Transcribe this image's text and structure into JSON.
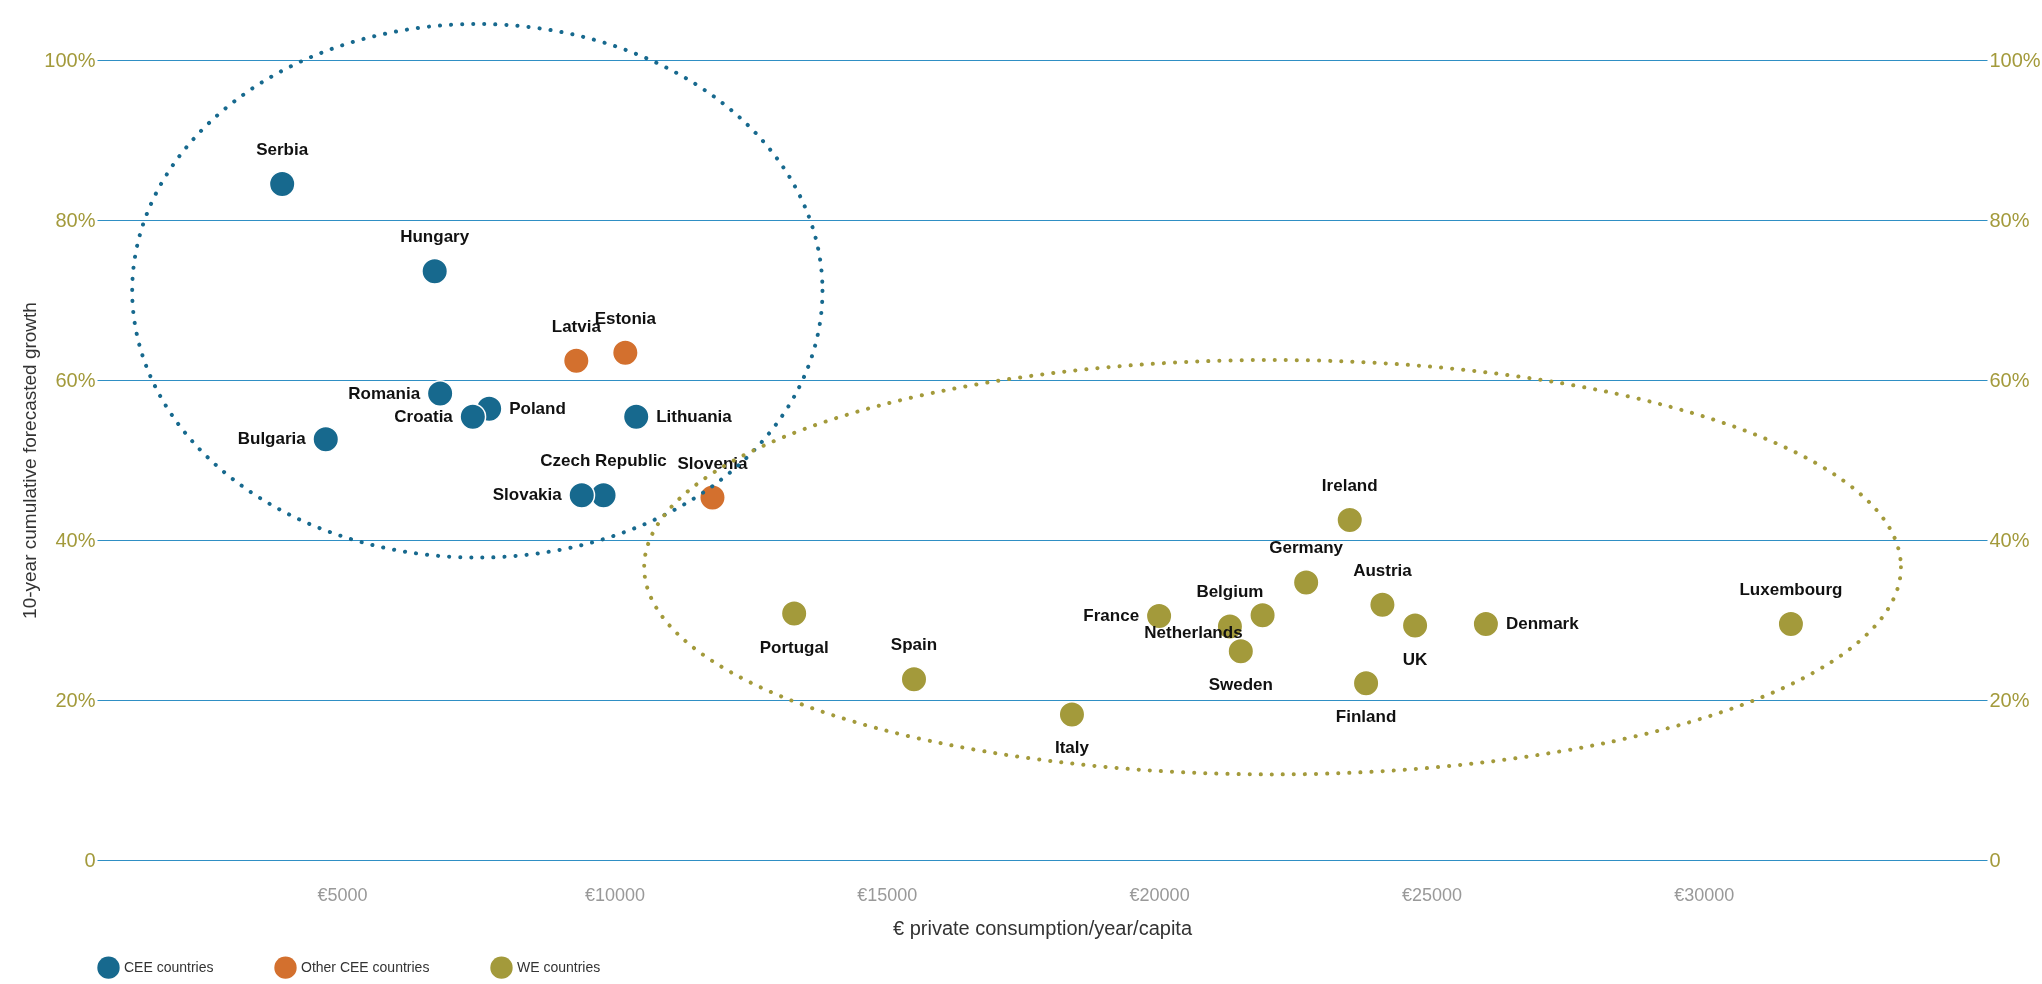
{
  "chart_data": {
    "type": "scatter",
    "xlabel": "€ private consumption/year/capita",
    "ylabel": "10-year cumulative forecasted growth",
    "xlim": [
      500,
      35200
    ],
    "xticks": [
      {
        "value": 5000,
        "label": "€5000"
      },
      {
        "value": 10000,
        "label": "€10000"
      },
      {
        "value": 15000,
        "label": "€15000"
      },
      {
        "value": 20000,
        "label": "€20000"
      },
      {
        "value": 25000,
        "label": "€25000"
      },
      {
        "value": 30000,
        "label": "€30000"
      }
    ],
    "ylim": [
      0,
      100
    ],
    "yticks": [
      {
        "value": 0,
        "label": "0"
      },
      {
        "value": 20,
        "label": "20%"
      },
      {
        "value": 40,
        "label": "40%"
      },
      {
        "value": 60,
        "label": "60%"
      },
      {
        "value": 80,
        "label": "80%"
      },
      {
        "value": 100,
        "label": "100%"
      }
    ],
    "y2lim": [
      0,
      100
    ],
    "y2ticks": [
      {
        "value": 0,
        "label": "0"
      },
      {
        "value": 20,
        "label": "20%"
      },
      {
        "value": 40,
        "label": "40%"
      },
      {
        "value": 60,
        "label": "60%"
      },
      {
        "value": 80,
        "label": "80%"
      },
      {
        "value": 100,
        "label": "100%"
      }
    ],
    "grid": "y",
    "legend": "bottom left",
    "marker": "circle",
    "series": [
      {
        "name": "CEE countries",
        "color": "#17698e",
        "x": [
          3900,
          6700,
          6800,
          7700,
          7400,
          10400,
          4700,
          9800,
          9400
        ],
        "values": [
          84.5,
          73.6,
          58.3,
          56.4,
          55.4,
          55.4,
          52.6,
          45.6,
          45.6
        ]
      },
      {
        "name": "Other CEE countries",
        "color": "#d3702e",
        "x": [
          9300,
          10200,
          11800
        ],
        "values": [
          62.4,
          63.4,
          45.3
        ]
      },
      {
        "name": "WE countries",
        "color": "#a39a3b",
        "x": [
          23500,
          22700,
          24100,
          20000,
          21300,
          21900,
          21500,
          24700,
          26000,
          23800,
          31600,
          13300,
          15500,
          18400
        ],
        "values": [
          42.5,
          34.7,
          31.9,
          30.5,
          29.2,
          30.6,
          26.1,
          29.3,
          29.5,
          22.1,
          29.5,
          30.8,
          22.6,
          18.2
        ]
      }
    ],
    "annotations": [
      {
        "text": "Serbia",
        "x": 3900,
        "y": 84.5
      },
      {
        "text": "Hungary",
        "x": 6700,
        "y": 73.6
      },
      {
        "text": "Romania",
        "x": 6800,
        "y": 58.3
      },
      {
        "text": "Poland",
        "x": 7700,
        "y": 56.4
      },
      {
        "text": "Croatia",
        "x": 7400,
        "y": 55.4
      },
      {
        "text": "Lithuania",
        "x": 10400,
        "y": 55.4
      },
      {
        "text": "Bulgaria",
        "x": 4700,
        "y": 52.6
      },
      {
        "text": "Czech Republic",
        "x": 9800,
        "y": 45.6
      },
      {
        "text": "Slovakia",
        "x": 9400,
        "y": 45.6
      },
      {
        "text": "Latvia",
        "x": 9300,
        "y": 62.4
      },
      {
        "text": "Estonia",
        "x": 10200,
        "y": 63.4
      },
      {
        "text": "Slovenia",
        "x": 11800,
        "y": 45.3
      },
      {
        "text": "Ireland",
        "x": 23500,
        "y": 42.5
      },
      {
        "text": "Germany",
        "x": 22700,
        "y": 34.7
      },
      {
        "text": "Austria",
        "x": 24100,
        "y": 31.9
      },
      {
        "text": "France",
        "x": 20000,
        "y": 30.5
      },
      {
        "text": "Belgium",
        "x": 21300,
        "y": 29.2
      },
      {
        "text": "Netherlands",
        "x": 21900,
        "y": 30.6
      },
      {
        "text": "Sweden",
        "x": 21500,
        "y": 26.1
      },
      {
        "text": "UK",
        "x": 24700,
        "y": 29.3
      },
      {
        "text": "Denmark",
        "x": 26000,
        "y": 29.5
      },
      {
        "text": "Finland",
        "x": 23800,
        "y": 22.1
      },
      {
        "text": "Luxembourg",
        "x": 31600,
        "y": 29.5
      },
      {
        "text": "Portugal",
        "x": 13300,
        "y": 30.8
      },
      {
        "text": "Spain",
        "x": 15500,
        "y": 22.6
      },
      {
        "text": "Italy",
        "x": 18400,
        "y": 18.2
      }
    ]
  }
}
